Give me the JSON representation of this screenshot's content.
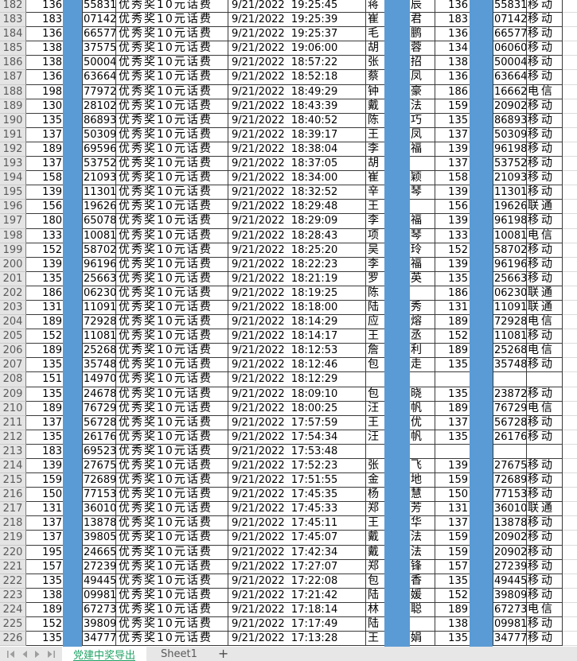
{
  "colors": {
    "redaction_bar": "#5B9BD5",
    "active_tab_green": "#21A366",
    "grid_border": "#3A3A3A",
    "row_header_bg": "#E4E4E4",
    "tab_bar_bg": "#E7E7E7"
  },
  "sheet": {
    "rows": [
      {
        "n": "182",
        "p1_prefix": "136",
        "p1_suffix": "55831",
        "prize": "优秀奖10元话费",
        "datetime": "9/21/2022  19:25:45",
        "name_first": "蒋",
        "name_last": "辰",
        "p2_prefix": "136",
        "p2_suffix": "55831",
        "carrier": "移动"
      },
      {
        "n": "183",
        "p1_prefix": "183",
        "p1_suffix": "07142",
        "prize": "优秀奖10元话费",
        "datetime": "9/21/2022  19:25:39",
        "name_first": "崔",
        "name_last": "君",
        "p2_prefix": "183",
        "p2_suffix": "07142",
        "carrier": "移动"
      },
      {
        "n": "184",
        "p1_prefix": "136",
        "p1_suffix": "66577",
        "prize": "优秀奖10元话费",
        "datetime": "9/21/2022  19:25:37",
        "name_first": "毛",
        "name_last": "鹏",
        "p2_prefix": "136",
        "p2_suffix": "66577",
        "carrier": "移动"
      },
      {
        "n": "185",
        "p1_prefix": "138",
        "p1_suffix": "37575",
        "prize": "优秀奖10元话费",
        "datetime": "9/21/2022  19:06:00",
        "name_first": "胡",
        "name_last": "蓉",
        "p2_prefix": "134",
        "p2_suffix": "06060",
        "carrier": "移动"
      },
      {
        "n": "186",
        "p1_prefix": "138",
        "p1_suffix": "50004",
        "prize": "优秀奖10元话费",
        "datetime": "9/21/2022  18:57:22",
        "name_first": "张",
        "name_last": "招",
        "p2_prefix": "138",
        "p2_suffix": "50004",
        "carrier": "移动"
      },
      {
        "n": "187",
        "p1_prefix": "136",
        "p1_suffix": "63664",
        "prize": "优秀奖10元话费",
        "datetime": "9/21/2022  18:52:18",
        "name_first": "蔡",
        "name_last": "凤",
        "p2_prefix": "136",
        "p2_suffix": "63664",
        "carrier": "移动"
      },
      {
        "n": "188",
        "p1_prefix": "198",
        "p1_suffix": "77972",
        "prize": "优秀奖10元话费",
        "datetime": "9/21/2022  18:49:29",
        "name_first": "钟",
        "name_last": "豪",
        "p2_prefix": "186",
        "p2_suffix": "16662",
        "carrier": "电信"
      },
      {
        "n": "189",
        "p1_prefix": "130",
        "p1_suffix": "28102",
        "prize": "优秀奖10元话费",
        "datetime": "9/21/2022  18:43:39",
        "name_first": "戴",
        "name_last": "法",
        "p2_prefix": "159",
        "p2_suffix": "20902",
        "carrier": "移动"
      },
      {
        "n": "190",
        "p1_prefix": "135",
        "p1_suffix": "86893",
        "prize": "优秀奖10元话费",
        "datetime": "9/21/2022  18:40:52",
        "name_first": "陈",
        "name_last": "巧",
        "p2_prefix": "135",
        "p2_suffix": "86893",
        "carrier": "移动"
      },
      {
        "n": "191",
        "p1_prefix": "137",
        "p1_suffix": "50309",
        "prize": "优秀奖10元话费",
        "datetime": "9/21/2022  18:39:17",
        "name_first": "王",
        "name_last": "凤",
        "p2_prefix": "137",
        "p2_suffix": "50309",
        "carrier": "移动"
      },
      {
        "n": "192",
        "p1_prefix": "189",
        "p1_suffix": "69596",
        "prize": "优秀奖10元话费",
        "datetime": "9/21/2022  18:38:04",
        "name_first": "李",
        "name_last": "福",
        "p2_prefix": "139",
        "p2_suffix": "96198",
        "carrier": "移动"
      },
      {
        "n": "193",
        "p1_prefix": "137",
        "p1_suffix": "53752",
        "prize": "优秀奖10元话费",
        "datetime": "9/21/2022  18:37:05",
        "name_first": "胡",
        "name_last": "",
        "p2_prefix": "137",
        "p2_suffix": "53752",
        "carrier": "移动"
      },
      {
        "n": "194",
        "p1_prefix": "158",
        "p1_suffix": "21093",
        "prize": "优秀奖10元话费",
        "datetime": "9/21/2022  18:34:00",
        "name_first": "崔",
        "name_last": "颖",
        "p2_prefix": "158",
        "p2_suffix": "21093",
        "carrier": "移动"
      },
      {
        "n": "195",
        "p1_prefix": "139",
        "p1_suffix": "11301",
        "prize": "优秀奖10元话费",
        "datetime": "9/21/2022  18:32:52",
        "name_first": "辛",
        "name_last": "琴",
        "p2_prefix": "139",
        "p2_suffix": "11301",
        "carrier": "移动"
      },
      {
        "n": "196",
        "p1_prefix": "156",
        "p1_suffix": "19626",
        "prize": "优秀奖10元话费",
        "datetime": "9/21/2022  18:29:48",
        "name_first": "王",
        "name_last": "",
        "p2_prefix": "156",
        "p2_suffix": "19626",
        "carrier": "联通"
      },
      {
        "n": "197",
        "p1_prefix": "180",
        "p1_suffix": "65078",
        "prize": "优秀奖10元话费",
        "datetime": "9/21/2022  18:29:09",
        "name_first": "李",
        "name_last": "福",
        "p2_prefix": "139",
        "p2_suffix": "96198",
        "carrier": "移动"
      },
      {
        "n": "198",
        "p1_prefix": "133",
        "p1_suffix": "10081",
        "prize": "优秀奖10元话费",
        "datetime": "9/21/2022  18:28:43",
        "name_first": "项",
        "name_last": "琴",
        "p2_prefix": "133",
        "p2_suffix": "10081",
        "carrier": "电信"
      },
      {
        "n": "199",
        "p1_prefix": "152",
        "p1_suffix": "58702",
        "prize": "优秀奖10元话费",
        "datetime": "9/21/2022  18:25:20",
        "name_first": "吴",
        "name_last": "玲",
        "p2_prefix": "152",
        "p2_suffix": "58702",
        "carrier": "移动"
      },
      {
        "n": "200",
        "p1_prefix": "139",
        "p1_suffix": "96196",
        "prize": "优秀奖10元话费",
        "datetime": "9/21/2022  18:22:23",
        "name_first": "李",
        "name_last": "福",
        "p2_prefix": "139",
        "p2_suffix": "96196",
        "carrier": "移动"
      },
      {
        "n": "201",
        "p1_prefix": "135",
        "p1_suffix": "25663",
        "prize": "优秀奖10元话费",
        "datetime": "9/21/2022  18:21:19",
        "name_first": "罗",
        "name_last": "英",
        "p2_prefix": "135",
        "p2_suffix": "25663",
        "carrier": "移动"
      },
      {
        "n": "202",
        "p1_prefix": "186",
        "p1_suffix": "06230",
        "prize": "优秀奖10元话费",
        "datetime": "9/21/2022  18:19:25",
        "name_first": "陈",
        "name_last": "",
        "p2_prefix": "186",
        "p2_suffix": "06230",
        "carrier": "联通"
      },
      {
        "n": "203",
        "p1_prefix": "131",
        "p1_suffix": "11091",
        "prize": "优秀奖10元话费",
        "datetime": "9/21/2022  18:18:00",
        "name_first": "陆",
        "name_last": "秀",
        "p2_prefix": "131",
        "p2_suffix": "11091",
        "carrier": "联通"
      },
      {
        "n": "204",
        "p1_prefix": "189",
        "p1_suffix": "72928",
        "prize": "优秀奖10元话费",
        "datetime": "9/21/2022  18:14:29",
        "name_first": "应",
        "name_last": "熔",
        "p2_prefix": "189",
        "p2_suffix": "72928",
        "carrier": "电信"
      },
      {
        "n": "205",
        "p1_prefix": "152",
        "p1_suffix": "11081",
        "prize": "优秀奖10元话费",
        "datetime": "9/21/2022  18:14:17",
        "name_first": "王",
        "name_last": "丞",
        "p2_prefix": "152",
        "p2_suffix": "11081",
        "carrier": "移动"
      },
      {
        "n": "206",
        "p1_prefix": "189",
        "p1_suffix": "25268",
        "prize": "优秀奖10元话费",
        "datetime": "9/21/2022  18:12:53",
        "name_first": "詹",
        "name_last": "利",
        "p2_prefix": "189",
        "p2_suffix": "25268",
        "carrier": "电信"
      },
      {
        "n": "207",
        "p1_prefix": "135",
        "p1_suffix": "35748",
        "prize": "优秀奖10元话费",
        "datetime": "9/21/2022  18:12:46",
        "name_first": "包",
        "name_last": "走",
        "p2_prefix": "135",
        "p2_suffix": "35748",
        "carrier": "移动"
      },
      {
        "n": "208",
        "p1_prefix": "151",
        "p1_suffix": "14970",
        "prize": "优秀奖10元话费",
        "datetime": "9/21/2022  18:12:29",
        "name_first": "",
        "name_last": "",
        "p2_prefix": "",
        "p2_suffix": "",
        "carrier": ""
      },
      {
        "n": "209",
        "p1_prefix": "135",
        "p1_suffix": "24678",
        "prize": "优秀奖10元话费",
        "datetime": "9/21/2022  18:09:10",
        "name_first": "包",
        "name_last": "晓",
        "p2_prefix": "135",
        "p2_suffix": "23872",
        "carrier": "移动"
      },
      {
        "n": "210",
        "p1_prefix": "189",
        "p1_suffix": "76729",
        "prize": "优秀奖10元话费",
        "datetime": "9/21/2022  18:00:25",
        "name_first": "汪",
        "name_last": "帆",
        "p2_prefix": "189",
        "p2_suffix": "76729",
        "carrier": "电信"
      },
      {
        "n": "211",
        "p1_prefix": "137",
        "p1_suffix": "56728",
        "prize": "优秀奖10元话费",
        "datetime": "9/21/2022  17:57:59",
        "name_first": "王",
        "name_last": "优",
        "p2_prefix": "137",
        "p2_suffix": "56728",
        "carrier": "移动"
      },
      {
        "n": "212",
        "p1_prefix": "135",
        "p1_suffix": "26176",
        "prize": "优秀奖10元话费",
        "datetime": "9/21/2022  17:54:34",
        "name_first": "汪",
        "name_last": "帆",
        "p2_prefix": "135",
        "p2_suffix": "26176",
        "carrier": "移动"
      },
      {
        "n": "213",
        "p1_prefix": "183",
        "p1_suffix": "69523",
        "prize": "优秀奖10元话费",
        "datetime": "9/21/2022  17:53:48",
        "name_first": "",
        "name_last": "",
        "p2_prefix": "",
        "p2_suffix": "",
        "carrier": ""
      },
      {
        "n": "214",
        "p1_prefix": "139",
        "p1_suffix": "27675",
        "prize": "优秀奖10元话费",
        "datetime": "9/21/2022  17:52:23",
        "name_first": "张",
        "name_last": "飞",
        "p2_prefix": "139",
        "p2_suffix": "27675",
        "carrier": "移动"
      },
      {
        "n": "215",
        "p1_prefix": "159",
        "p1_suffix": "72689",
        "prize": "优秀奖10元话费",
        "datetime": "9/21/2022  17:51:55",
        "name_first": "金",
        "name_last": "地",
        "p2_prefix": "159",
        "p2_suffix": "72689",
        "carrier": "移动"
      },
      {
        "n": "216",
        "p1_prefix": "150",
        "p1_suffix": "77153",
        "prize": "优秀奖10元话费",
        "datetime": "9/21/2022  17:45:35",
        "name_first": "杨",
        "name_last": "慧",
        "p2_prefix": "150",
        "p2_suffix": "77153",
        "carrier": "移动"
      },
      {
        "n": "217",
        "p1_prefix": "131",
        "p1_suffix": "36010",
        "prize": "优秀奖10元话费",
        "datetime": "9/21/2022  17:45:33",
        "name_first": "郑",
        "name_last": "芳",
        "p2_prefix": "131",
        "p2_suffix": "36010",
        "carrier": "联通"
      },
      {
        "n": "218",
        "p1_prefix": "137",
        "p1_suffix": "13878",
        "prize": "优秀奖10元话费",
        "datetime": "9/21/2022  17:45:11",
        "name_first": "王",
        "name_last": "华",
        "p2_prefix": "137",
        "p2_suffix": "13878",
        "carrier": "移动"
      },
      {
        "n": "219",
        "p1_prefix": "137",
        "p1_suffix": "39805",
        "prize": "优秀奖10元话费",
        "datetime": "9/21/2022  17:45:07",
        "name_first": "戴",
        "name_last": "法",
        "p2_prefix": "159",
        "p2_suffix": "20902",
        "carrier": "移动"
      },
      {
        "n": "220",
        "p1_prefix": "195",
        "p1_suffix": "24665",
        "prize": "优秀奖10元话费",
        "datetime": "9/21/2022  17:42:34",
        "name_first": "戴",
        "name_last": "法",
        "p2_prefix": "159",
        "p2_suffix": "20902",
        "carrier": "移动"
      },
      {
        "n": "221",
        "p1_prefix": "157",
        "p1_suffix": "27239",
        "prize": "优秀奖10元话费",
        "datetime": "9/21/2022  17:27:07",
        "name_first": "郑",
        "name_last": "锋",
        "p2_prefix": "157",
        "p2_suffix": "27239",
        "carrier": "移动"
      },
      {
        "n": "222",
        "p1_prefix": "135",
        "p1_suffix": "49445",
        "prize": "优秀奖10元话费",
        "datetime": "9/21/2022  17:22:08",
        "name_first": "包",
        "name_last": "香",
        "p2_prefix": "135",
        "p2_suffix": "49445",
        "carrier": "移动"
      },
      {
        "n": "223",
        "p1_prefix": "138",
        "p1_suffix": "09981",
        "prize": "优秀奖10元话费",
        "datetime": "9/21/2022  17:21:42",
        "name_first": "陆",
        "name_last": "媛",
        "p2_prefix": "152",
        "p2_suffix": "39809",
        "carrier": "移动"
      },
      {
        "n": "224",
        "p1_prefix": "189",
        "p1_suffix": "67273",
        "prize": "优秀奖10元话费",
        "datetime": "9/21/2022  17:18:14",
        "name_first": "林",
        "name_last": "聪",
        "p2_prefix": "189",
        "p2_suffix": "67273",
        "carrier": "电信"
      },
      {
        "n": "225",
        "p1_prefix": "152",
        "p1_suffix": "39809",
        "prize": "优秀奖10元话费",
        "datetime": "9/21/2022  17:17:49",
        "name_first": "陆",
        "name_last": "",
        "p2_prefix": "138",
        "p2_suffix": "09981",
        "carrier": "移动"
      },
      {
        "n": "226",
        "p1_prefix": "135",
        "p1_suffix": "34777",
        "prize": "优秀奖10元话费",
        "datetime": "9/21/2022  17:13:28",
        "name_first": "王",
        "name_last": "娟",
        "p2_prefix": "135",
        "p2_suffix": "34777",
        "carrier": "移动"
      }
    ]
  },
  "tab_bar": {
    "nav_icons": [
      "scroll-first",
      "scroll-prev",
      "scroll-next",
      "scroll-last"
    ],
    "active_tab": "党建中奖导出",
    "other_tabs": [
      "Sheet1"
    ],
    "add_button": "+"
  }
}
